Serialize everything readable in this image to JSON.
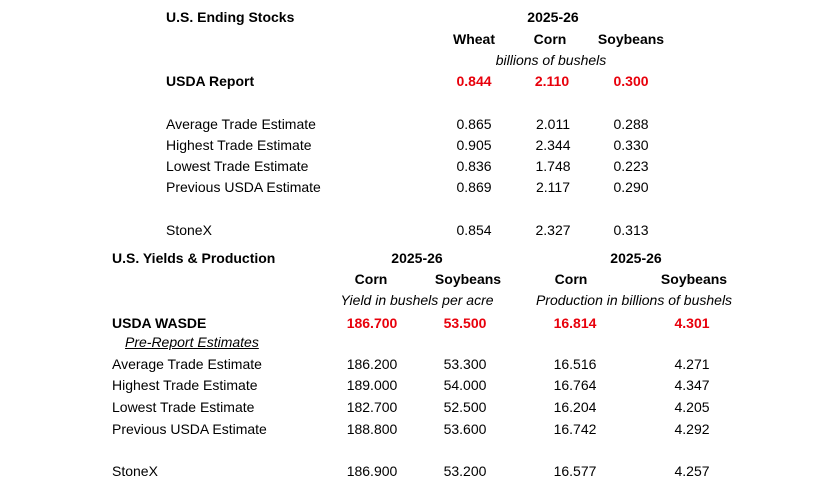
{
  "ending": {
    "title": "U.S. Ending Stocks",
    "year": "2025-26",
    "cols": [
      "Wheat",
      "Corn",
      "Soybeans"
    ],
    "unit": "billions of bushels",
    "usda": {
      "label": "USDA Report",
      "values": [
        "0.844",
        "2.110",
        "0.300"
      ]
    },
    "rows": [
      {
        "label": "Average Trade Estimate",
        "values": [
          "0.865",
          "2.011",
          "0.288"
        ]
      },
      {
        "label": "Highest Trade Estimate",
        "values": [
          "0.905",
          "2.344",
          "0.330"
        ]
      },
      {
        "label": "Lowest Trade Estimate",
        "values": [
          "0.836",
          "1.748",
          "0.223"
        ]
      },
      {
        "label": "Previous USDA Estimate",
        "values": [
          "0.869",
          "2.117",
          "0.290"
        ]
      }
    ],
    "stonex": {
      "label": "StoneX",
      "values": [
        "0.854",
        "2.327",
        "0.313"
      ]
    }
  },
  "yields": {
    "title": "U.S. Yields & Production",
    "year_left": "2025-26",
    "year_right": "2025-26",
    "cols": [
      "Corn",
      "Soybeans",
      "Corn",
      "Soybeans"
    ],
    "unit_left": "Yield in bushels per acre",
    "unit_right": "Production in billions of bushels",
    "usda": {
      "label": "USDA WASDE",
      "values": [
        "186.700",
        "53.500",
        "16.814",
        "4.301"
      ]
    },
    "pre_label": "Pre-Report Estimates",
    "rows": [
      {
        "label": "Average Trade Estimate",
        "values": [
          "186.200",
          "53.300",
          "16.516",
          "4.271"
        ]
      },
      {
        "label": "Highest Trade Estimate",
        "values": [
          "189.000",
          "54.000",
          "16.764",
          "4.347"
        ]
      },
      {
        "label": "Lowest Trade Estimate",
        "values": [
          "182.700",
          "52.500",
          "16.204",
          "4.205"
        ]
      },
      {
        "label": "Previous USDA Estimate",
        "values": [
          "188.800",
          "53.600",
          "16.742",
          "4.292"
        ]
      }
    ],
    "stonex": {
      "label": "StoneX",
      "values": [
        "186.900",
        "53.200",
        "16.577",
        "4.257"
      ]
    }
  }
}
